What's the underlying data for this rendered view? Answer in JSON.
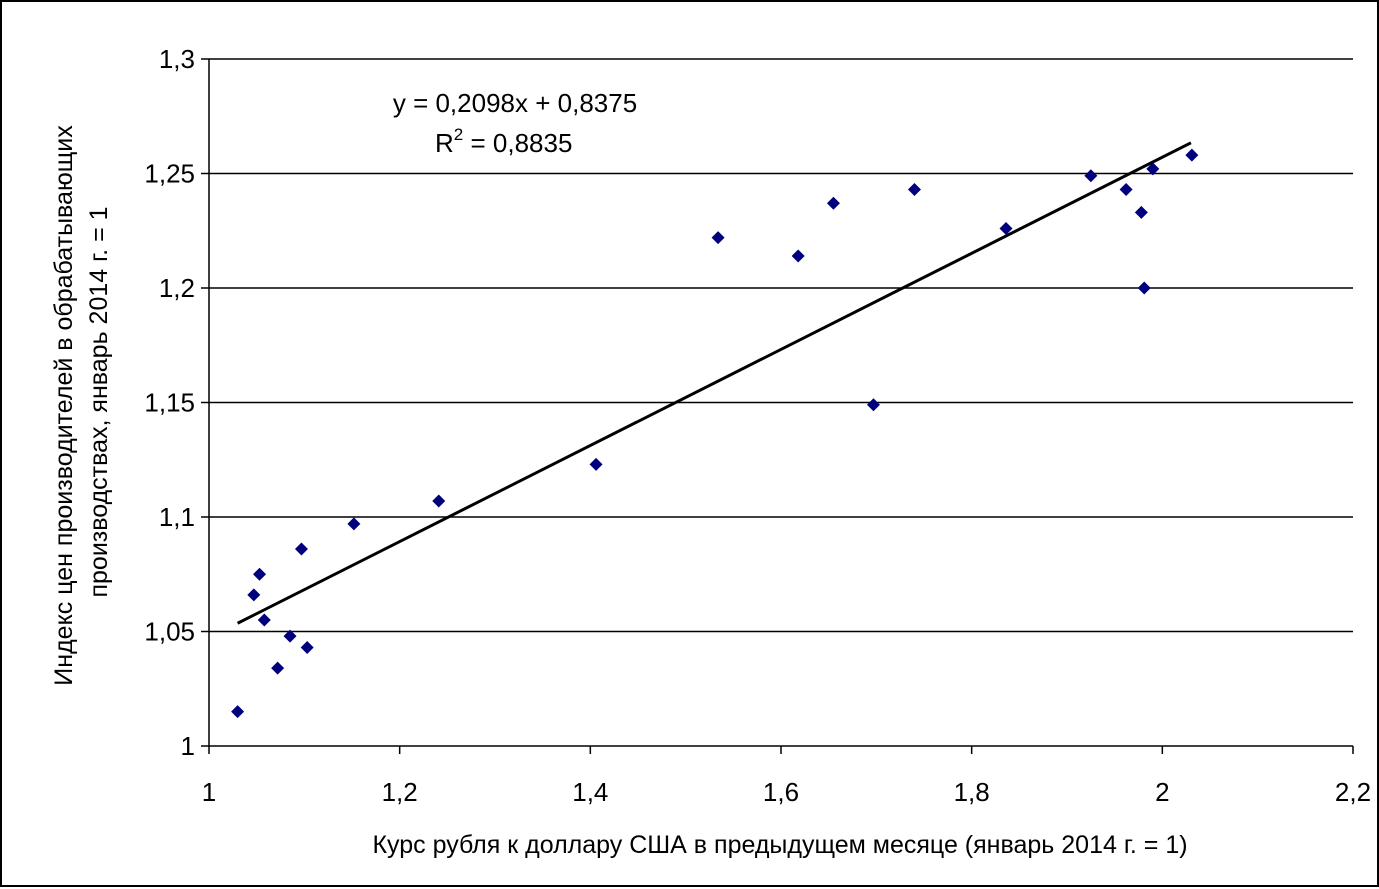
{
  "chart_data": {
    "type": "scatter",
    "xlabel": "Курс рубля к доллару США в предыдущем месяце (январь 2014 г. = 1)",
    "ylabel_lines": [
      "Индекс цен производителей в обрабатывающих",
      "производствах, январь 2014 г. = 1"
    ],
    "xlim": [
      1,
      2.2
    ],
    "ylim": [
      1,
      1.3
    ],
    "x_ticks": [
      1,
      1.2,
      1.4,
      1.6,
      1.8,
      2,
      2.2
    ],
    "x_tick_labels": [
      "1",
      "1,2",
      "1,4",
      "1,6",
      "1,8",
      "2",
      "2,2"
    ],
    "y_ticks": [
      1,
      1.05,
      1.1,
      1.15,
      1.2,
      1.25,
      1.3
    ],
    "y_tick_labels": [
      "1",
      "1,05",
      "1,1",
      "1,15",
      "1,2",
      "1,25",
      "1,3"
    ],
    "grid": "horizontal",
    "marker_color": "#00007f",
    "trendline": {
      "slope": 0.2098,
      "intercept": 0.8375,
      "x_range": [
        1.03,
        2.03
      ],
      "color": "#000000",
      "equation_text": "y = 0,2098x + 0,8375",
      "r2_prefix": "R",
      "r2_exponent": "2",
      "r2_value_text": " = 0,8835"
    },
    "points": [
      {
        "x": 1.03,
        "y": 1.015
      },
      {
        "x": 1.047,
        "y": 1.066
      },
      {
        "x": 1.053,
        "y": 1.075
      },
      {
        "x": 1.058,
        "y": 1.055
      },
      {
        "x": 1.072,
        "y": 1.034
      },
      {
        "x": 1.085,
        "y": 1.048
      },
      {
        "x": 1.097,
        "y": 1.086
      },
      {
        "x": 1.103,
        "y": 1.043
      },
      {
        "x": 1.152,
        "y": 1.097
      },
      {
        "x": 1.241,
        "y": 1.107
      },
      {
        "x": 1.406,
        "y": 1.123
      },
      {
        "x": 1.534,
        "y": 1.222
      },
      {
        "x": 1.618,
        "y": 1.214
      },
      {
        "x": 1.655,
        "y": 1.237
      },
      {
        "x": 1.697,
        "y": 1.149
      },
      {
        "x": 1.74,
        "y": 1.243
      },
      {
        "x": 1.836,
        "y": 1.226
      },
      {
        "x": 1.925,
        "y": 1.249
      },
      {
        "x": 1.962,
        "y": 1.243
      },
      {
        "x": 1.978,
        "y": 1.233
      },
      {
        "x": 1.981,
        "y": 1.2
      },
      {
        "x": 1.99,
        "y": 1.252
      },
      {
        "x": 2.031,
        "y": 1.258
      }
    ]
  }
}
